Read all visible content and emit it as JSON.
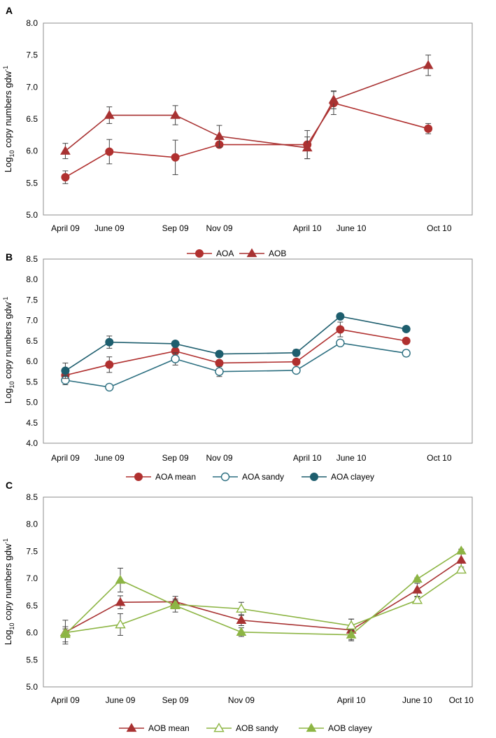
{
  "colors": {
    "aoa": "#b0302f",
    "aob": "#a83232",
    "sandy_aoa": "#2c6f80",
    "clayey_aoa": "#1e5e6e",
    "green": "#8db544",
    "frame": "#8c8c8c"
  },
  "chart_data": [
    {
      "panel": "A",
      "type": "line",
      "ylabel_prefix": "Log",
      "ylabel_sub": "10",
      "ylabel_main": " copy numbers gdw",
      "ylabel_sup": "-1",
      "ylim": [
        5.0,
        8.0
      ],
      "yticks": [
        "5.0",
        "5.5",
        "6.0",
        "6.5",
        "7.0",
        "7.5",
        "8.0"
      ],
      "xlim": [
        0,
        19.5
      ],
      "xticks": [
        {
          "label": "April  09",
          "x": 1
        },
        {
          "label": "June 09",
          "x": 3
        },
        {
          "label": "Sep 09",
          "x": 6
        },
        {
          "label": "Nov 09",
          "x": 8
        },
        {
          "label": "April 10",
          "x": 12
        },
        {
          "label": "June 10",
          "x": 14
        },
        {
          "label": "Oct 10",
          "x": 18
        }
      ],
      "legend": "bottom",
      "series": [
        {
          "name": "AOA",
          "marker": "circle",
          "color": "#b0302f",
          "x": [
            1,
            3,
            6,
            8,
            12,
            13.2,
            17.5
          ],
          "y": [
            5.59,
            5.99,
            5.9,
            6.1,
            6.1,
            6.75,
            6.35
          ],
          "err": [
            0.1,
            0.19,
            0.27,
            0.04,
            0.22,
            0.18,
            0.08
          ]
        },
        {
          "name": "AOB",
          "marker": "triangle",
          "color": "#a83232",
          "x": [
            1,
            3,
            6,
            8,
            12,
            13.2,
            17.5
          ],
          "y": [
            6.0,
            6.56,
            6.56,
            6.23,
            6.05,
            6.8,
            7.34
          ],
          "err": [
            0.12,
            0.13,
            0.15,
            0.17,
            0.17,
            0.14,
            0.16
          ]
        }
      ]
    },
    {
      "panel": "B",
      "type": "line",
      "ylabel_prefix": "Log",
      "ylabel_sub": "10",
      "ylabel_main": " copy numbers gdw",
      "ylabel_sup": "-1",
      "ylim": [
        4.0,
        8.5
      ],
      "yticks": [
        "4.0",
        "4.5",
        "5.0",
        "5.5",
        "6.0",
        "6.5",
        "7.0",
        "7.5",
        "8.0",
        "8.5"
      ],
      "xlim": [
        0,
        19.5
      ],
      "xticks": [
        {
          "label": "April  09",
          "x": 1
        },
        {
          "label": "June 09",
          "x": 3
        },
        {
          "label": "Sep 09",
          "x": 6
        },
        {
          "label": "Nov 09",
          "x": 8
        },
        {
          "label": "April 10",
          "x": 12
        },
        {
          "label": "June 10",
          "x": 14
        },
        {
          "label": "Oct 10",
          "x": 18
        }
      ],
      "legend": "bottom",
      "series": [
        {
          "name": "AOA mean",
          "marker": "circle",
          "color": "#b0302f",
          "x": [
            1,
            3,
            6,
            8,
            11.5,
            13.5,
            16.5
          ],
          "y": [
            5.66,
            5.92,
            6.25,
            5.96,
            5.99,
            6.78,
            6.5
          ],
          "err": [
            0.06,
            0.19,
            0.08,
            0.05,
            0.06,
            0.18,
            0.07
          ]
        },
        {
          "name": "AOA sandy",
          "marker": "circle-open",
          "color": "#2c6f80",
          "x": [
            1,
            3,
            6,
            8,
            11.5,
            13.5,
            16.5
          ],
          "y": [
            5.54,
            5.37,
            6.06,
            5.75,
            5.78,
            6.45,
            6.2
          ],
          "err": [
            0.11,
            0.05,
            0.15,
            0.12,
            0.05,
            0.05,
            0.08
          ]
        },
        {
          "name": "AOA clayey",
          "marker": "circle",
          "color": "#1e5e6e",
          "x": [
            1,
            3,
            6,
            8,
            11.5,
            13.5,
            16.5
          ],
          "y": [
            5.77,
            6.47,
            6.43,
            6.18,
            6.21,
            7.1,
            6.79
          ],
          "err": [
            0.19,
            0.15,
            0.05,
            0.03,
            0.08,
            0.03,
            0.03
          ]
        }
      ]
    },
    {
      "panel": "C",
      "type": "line",
      "ylabel_prefix": "Log",
      "ylabel_sub": "10",
      "ylabel_main": " copy numbers gdw",
      "ylabel_sup": "-1",
      "ylim": [
        5.0,
        8.5
      ],
      "yticks": [
        "5.0",
        "5.5",
        "6.0",
        "6.5",
        "7.0",
        "7.5",
        "8.0",
        "8.5"
      ],
      "xlim": [
        0,
        19.5
      ],
      "xticks": [
        {
          "label": "April  09",
          "x": 1
        },
        {
          "label": "June 09",
          "x": 3.5
        },
        {
          "label": "Sep 09",
          "x": 6
        },
        {
          "label": "Nov 09",
          "x": 9
        },
        {
          "label": "April 10",
          "x": 14
        },
        {
          "label": "June 10",
          "x": 17
        },
        {
          "label": "Oct 10",
          "x": 19
        }
      ],
      "legend": "bottom",
      "series": [
        {
          "name": "AOB mean",
          "marker": "triangle",
          "color": "#a83232",
          "x": [
            1,
            3.5,
            6,
            9,
            14,
            17,
            19
          ],
          "y": [
            6.01,
            6.56,
            6.57,
            6.23,
            6.05,
            6.79,
            7.34
          ],
          "err": [
            0.22,
            0.12,
            0.1,
            0.1,
            0.2,
            0.12,
            0.16
          ]
        },
        {
          "name": "AOB sandy",
          "marker": "triangle-open",
          "color": "#8db544",
          "x": [
            1,
            3.5,
            6,
            9,
            14,
            17,
            19
          ],
          "y": [
            6.0,
            6.15,
            6.52,
            6.44,
            6.13,
            6.6,
            7.16
          ],
          "err": [
            0.07,
            0.2,
            0.07,
            0.12,
            0.12,
            0.06,
            0.05
          ]
        },
        {
          "name": "AOB clayey",
          "marker": "triangle",
          "color": "#8db544",
          "x": [
            1,
            3.5,
            6,
            9,
            14,
            17,
            19
          ],
          "y": [
            5.97,
            6.97,
            6.5,
            6.01,
            5.96,
            6.99,
            7.51
          ],
          "err": [
            0.14,
            0.22,
            0.12,
            0.08,
            0.09,
            0.02,
            0.03
          ]
        }
      ]
    }
  ]
}
